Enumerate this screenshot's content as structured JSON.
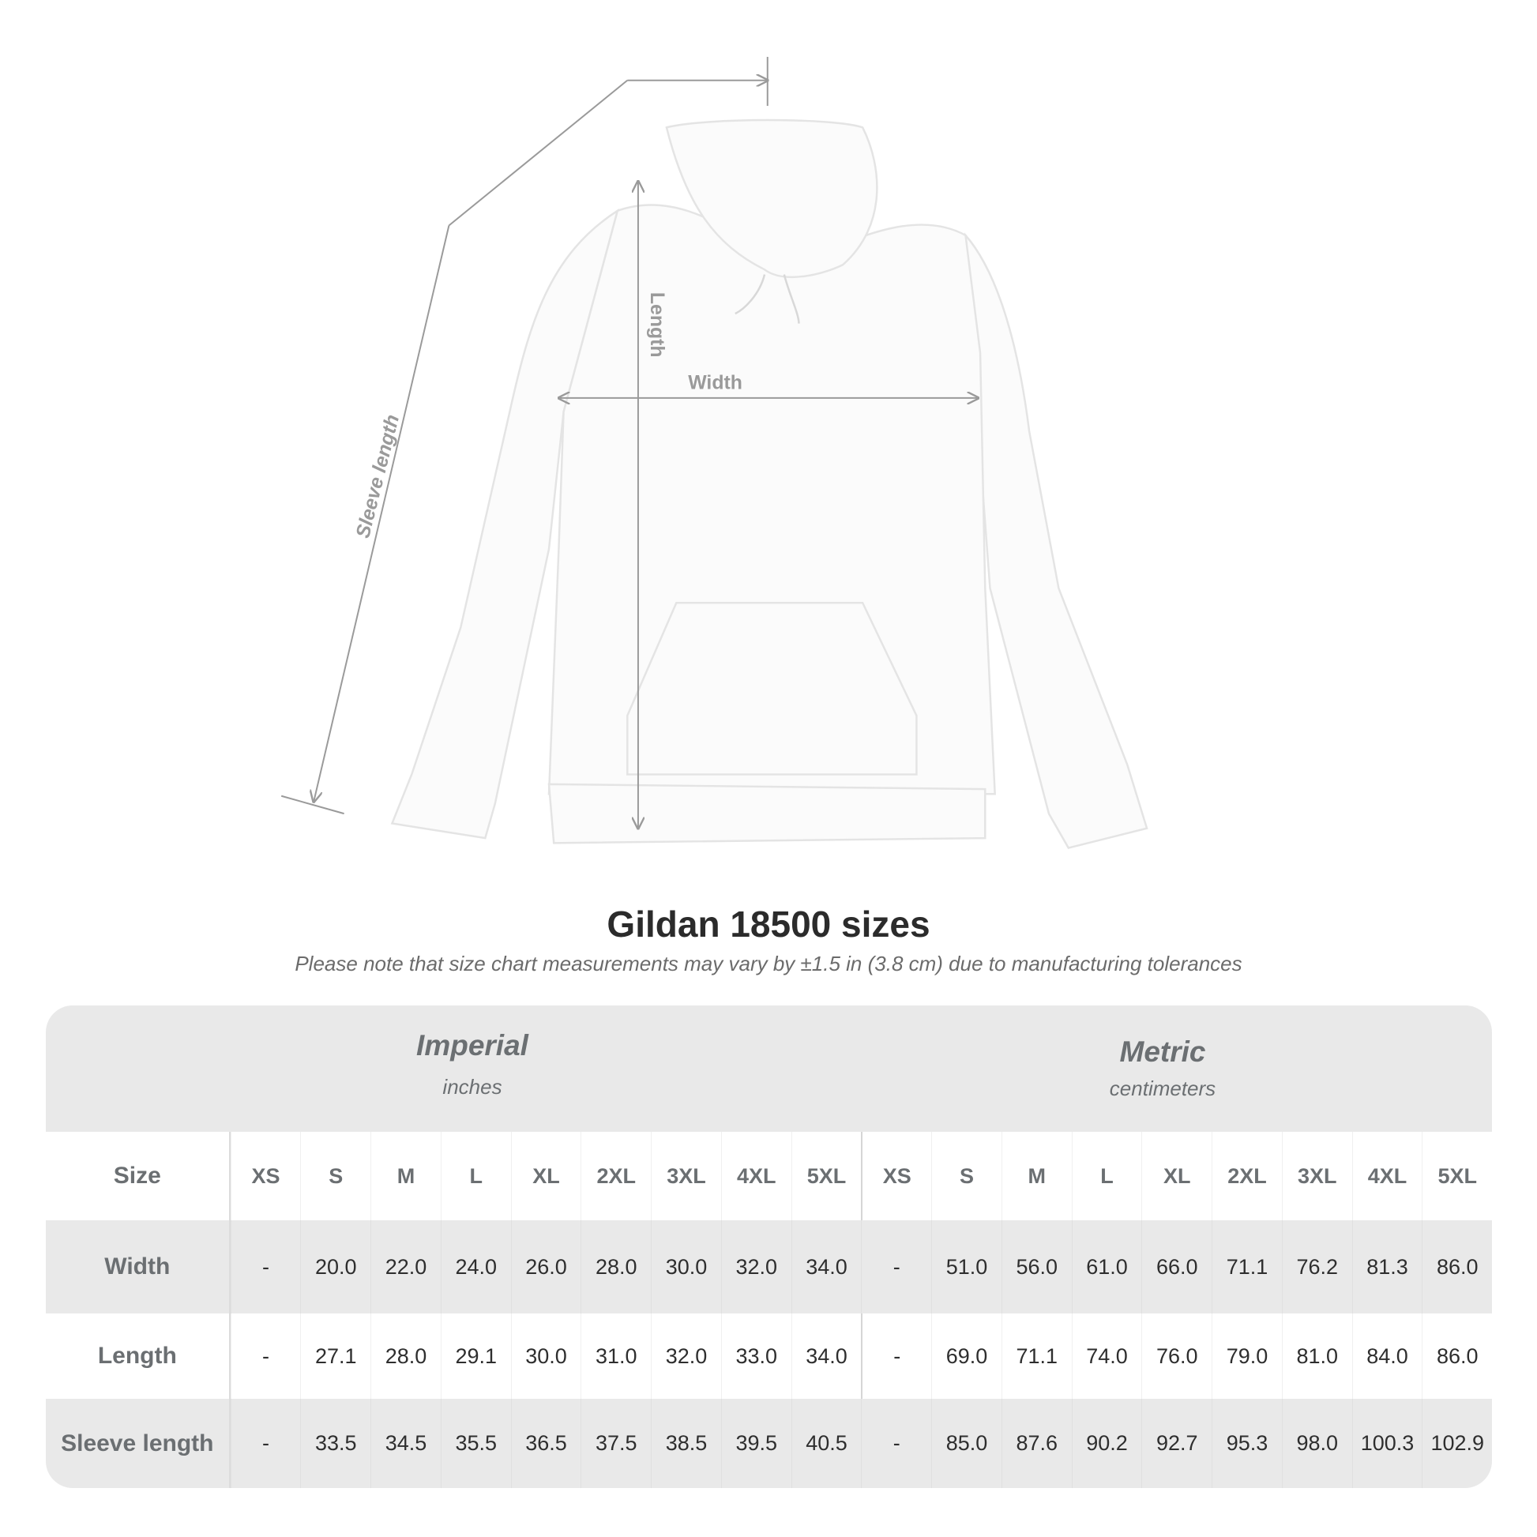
{
  "illustration": {
    "labels": {
      "sleeve": "Sleeve length",
      "length": "Length",
      "width": "Width"
    },
    "line_color": "#9a9a9a",
    "garment_color": "#fbfbfb"
  },
  "heading": {
    "title": "Gildan 18500 sizes",
    "note": "Please note that size chart measurements may vary by ±1.5 in (3.8 cm) due to manufacturing tolerances"
  },
  "table": {
    "groups": [
      {
        "name": "Imperial",
        "unit": "inches"
      },
      {
        "name": "Metric",
        "unit": "centimeters"
      }
    ],
    "size_label": "Size",
    "sizes": [
      "XS",
      "S",
      "M",
      "L",
      "XL",
      "2XL",
      "3XL",
      "4XL",
      "5XL"
    ],
    "rows": [
      {
        "label": "Width",
        "imperial": [
          "-",
          "20.0",
          "22.0",
          "24.0",
          "26.0",
          "28.0",
          "30.0",
          "32.0",
          "34.0"
        ],
        "metric": [
          "-",
          "51.0",
          "56.0",
          "61.0",
          "66.0",
          "71.1",
          "76.2",
          "81.3",
          "86.0"
        ]
      },
      {
        "label": "Length",
        "imperial": [
          "-",
          "27.1",
          "28.0",
          "29.1",
          "30.0",
          "31.0",
          "32.0",
          "33.0",
          "34.0"
        ],
        "metric": [
          "-",
          "69.0",
          "71.1",
          "74.0",
          "76.0",
          "79.0",
          "81.0",
          "84.0",
          "86.0"
        ]
      },
      {
        "label": "Sleeve length",
        "imperial": [
          "-",
          "33.5",
          "34.5",
          "35.5",
          "36.5",
          "37.5",
          "38.5",
          "39.5",
          "40.5"
        ],
        "metric": [
          "-",
          "85.0",
          "87.6",
          "90.2",
          "92.7",
          "95.3",
          "98.0",
          "100.3",
          "102.9"
        ]
      }
    ],
    "colors": {
      "header_bg": "#e9e9e9",
      "label_text": "#6b6f72",
      "value_text": "#2e2e2e"
    }
  }
}
